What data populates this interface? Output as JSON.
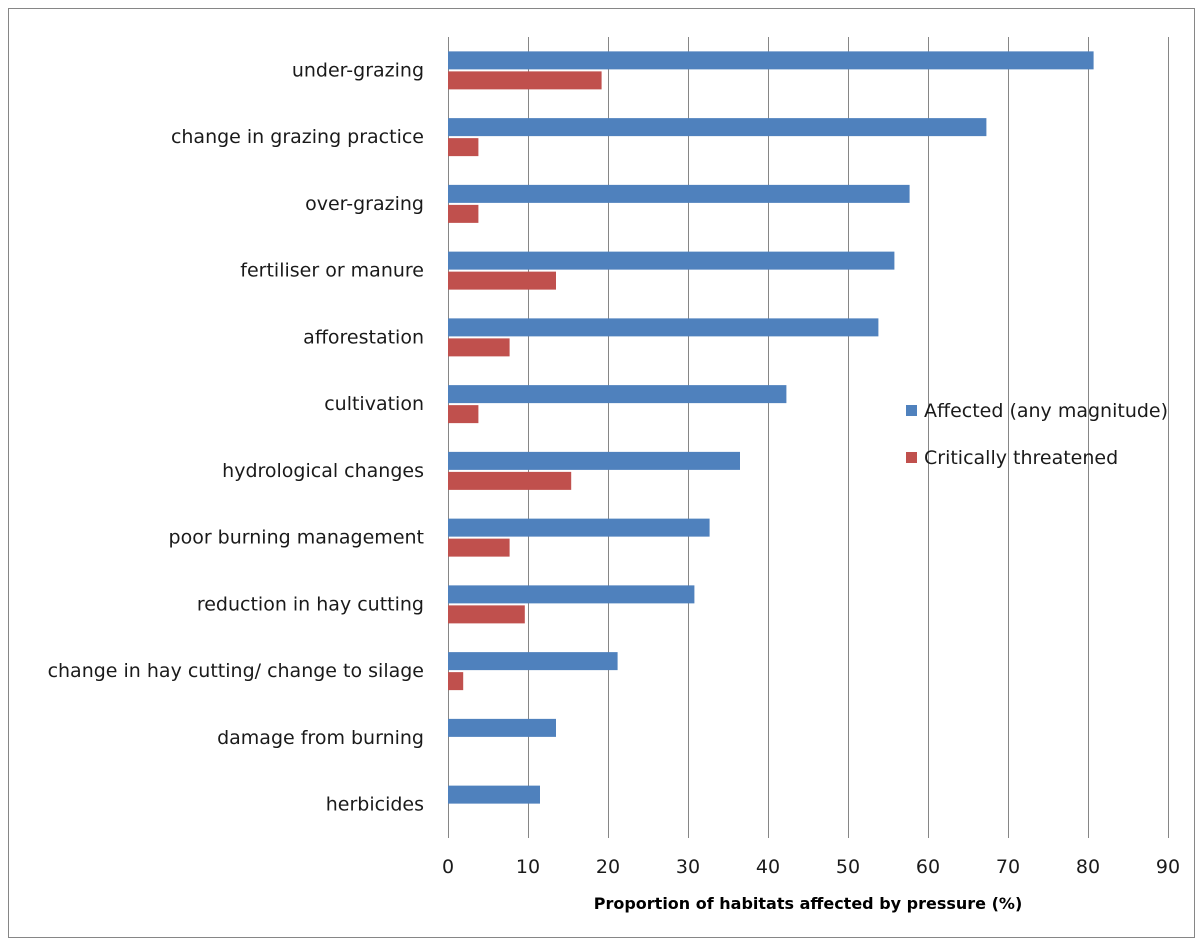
{
  "chart_data": {
    "type": "bar",
    "orientation": "horizontal",
    "categories": [
      "under-grazing",
      "change in grazing practice",
      "over-grazing",
      "fertiliser or manure",
      "afforestation",
      "cultivation",
      "hydrological changes",
      "poor burning management",
      "reduction in hay cutting",
      "change in hay cutting/ change to silage",
      "damage from burning",
      "herbicides"
    ],
    "series": [
      {
        "name": "Affected (any magnitude)",
        "color": "#4f81bd",
        "values": [
          80.7,
          67.3,
          57.7,
          55.8,
          53.8,
          42.3,
          36.5,
          32.7,
          30.8,
          21.2,
          13.5,
          11.5
        ]
      },
      {
        "name": "Critically threatened",
        "color": "#c0504d",
        "values": [
          19.2,
          3.8,
          3.8,
          13.5,
          7.7,
          3.8,
          15.4,
          7.7,
          9.6,
          1.9,
          0,
          0
        ]
      }
    ],
    "xlabel": "Proportion of habitats  affected by pressure (%)",
    "ylabel": "",
    "xlim": [
      0,
      90
    ],
    "xticks": [
      "0",
      "10",
      "20",
      "30",
      "40",
      "50",
      "60",
      "70",
      "80",
      "90"
    ],
    "grid": true,
    "legend_position": "right"
  }
}
